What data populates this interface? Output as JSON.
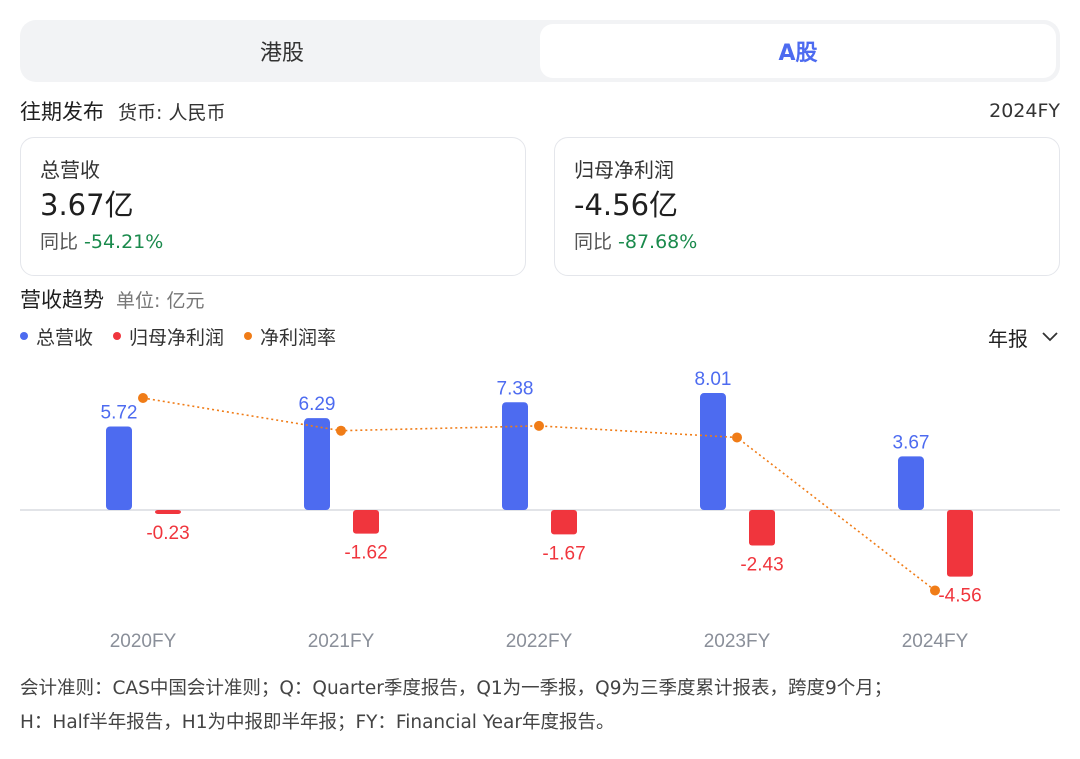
{
  "tabs": [
    {
      "label": "港股",
      "active": false
    },
    {
      "label": "A股",
      "active": true
    }
  ],
  "section": {
    "title": "往期发布",
    "currency": "货币: 人民币",
    "period": "2024FY"
  },
  "cards": [
    {
      "label": "总营收",
      "value": "3.67亿",
      "yoy_label": "同比",
      "yoy_value": "-54.21%"
    },
    {
      "label": "归母净利润",
      "value": "-4.56亿",
      "yoy_label": "同比",
      "yoy_value": "-87.68%"
    }
  ],
  "trend": {
    "title": "营收趋势",
    "unit": "单位: 亿元",
    "period_select": "年报"
  },
  "colors": {
    "revenue": "#4d6bf0",
    "profit": "#f0353d",
    "margin": "#f07c17",
    "yoy_negative": "#1a8a4c"
  },
  "chart_data": {
    "type": "bar",
    "categories": [
      "2020FY",
      "2021FY",
      "2022FY",
      "2023FY",
      "2024FY"
    ],
    "series": [
      {
        "name": "总营收",
        "type": "bar",
        "color": "#4d6bf0",
        "values": [
          5.72,
          6.29,
          7.38,
          8.01,
          3.67
        ],
        "labels": [
          "5.72",
          "6.29",
          "7.38",
          "8.01",
          "3.67"
        ]
      },
      {
        "name": "归母净利润",
        "type": "bar",
        "color": "#f0353d",
        "values": [
          -0.23,
          -1.62,
          -1.67,
          -2.43,
          -4.56
        ],
        "labels": [
          "-0.23",
          "-1.62",
          "-1.67",
          "-2.43",
          "-4.56"
        ]
      },
      {
        "name": "净利润率",
        "type": "line",
        "color": "#f07c17",
        "values": [
          -4.0,
          -25.8,
          -22.6,
          -30.3,
          -124.3
        ]
      }
    ],
    "legend_position": "top-left",
    "grid": false
  },
  "footnote": {
    "line1": "会计准则：CAS中国会计准则；Q：Quarter季度报告，Q1为一季报，Q9为三季度累计报表，跨度9个月；",
    "line2": "H：Half半年报告，H1为中报即半年报；FY：Financial Year年度报告。"
  }
}
